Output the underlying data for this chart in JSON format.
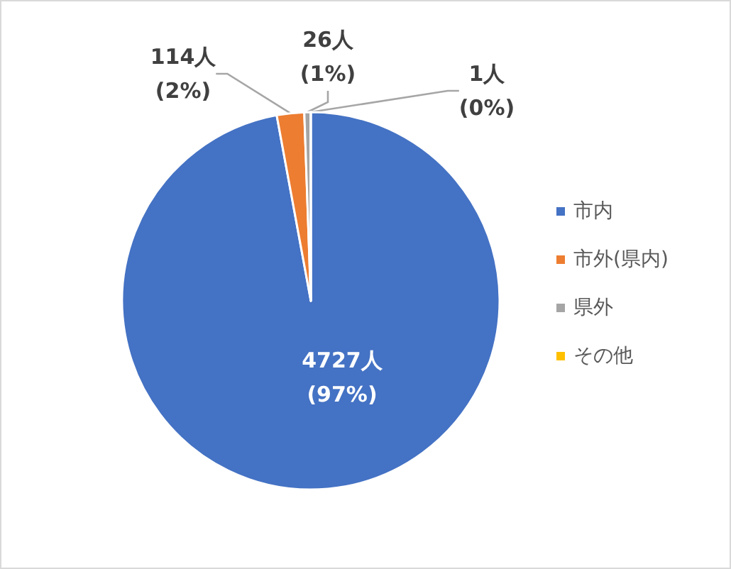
{
  "chart_data": {
    "type": "pie",
    "categories": [
      "市内",
      "市外(県内)",
      "県外",
      "その他"
    ],
    "values": [
      4727,
      114,
      26,
      1
    ],
    "colors": [
      "#4472c4",
      "#ed7d31",
      "#a5a5a5",
      "#ffc000"
    ],
    "value_labels": [
      "4727人\n(97%)",
      "114人\n(2%)",
      "26人\n(1%)",
      "1人\n(0%)"
    ],
    "legend": "right"
  }
}
